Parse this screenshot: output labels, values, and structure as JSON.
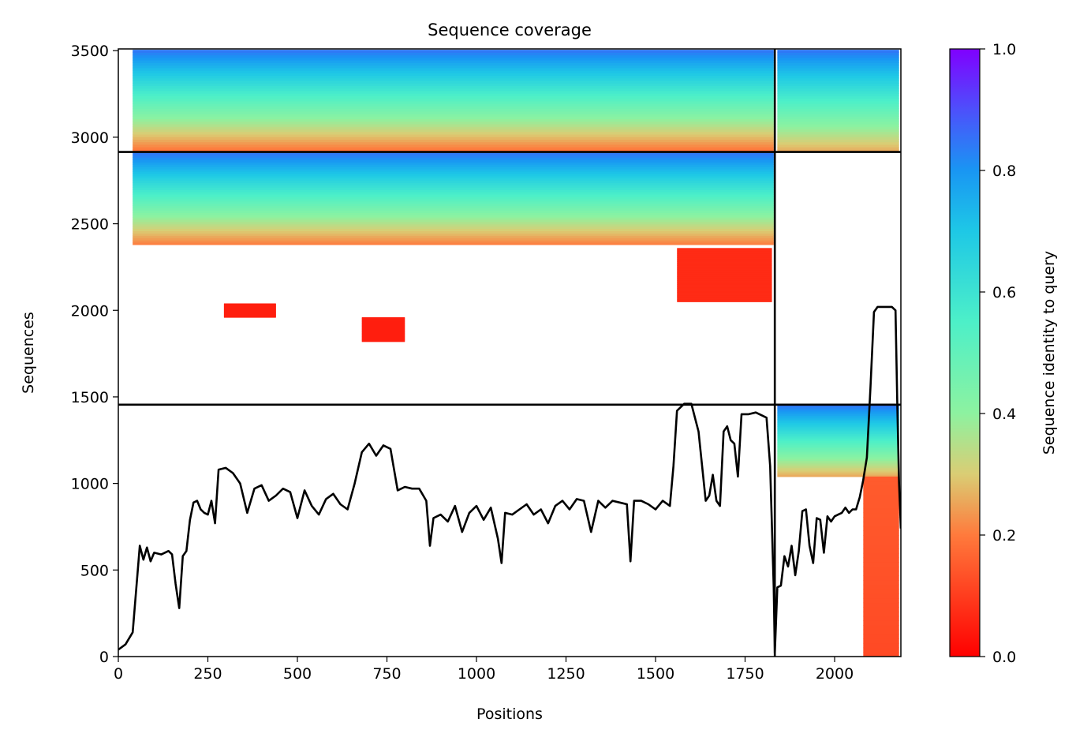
{
  "chart_data": {
    "type": "heatmap",
    "title": "Sequence coverage",
    "xlabel": "Positions",
    "ylabel": "Sequences",
    "xlim": [
      0,
      2185
    ],
    "ylim": [
      0,
      3510
    ],
    "x_ticks": [
      0,
      250,
      500,
      750,
      1000,
      1250,
      1500,
      1750,
      2000
    ],
    "y_ticks": [
      0,
      500,
      1000,
      1500,
      2000,
      2500,
      3000,
      3500
    ],
    "colorbar": {
      "label": "Sequence identity to query",
      "range": [
        0.0,
        1.0
      ],
      "ticks": [
        0.0,
        0.2,
        0.4,
        0.6,
        0.8,
        1.0
      ],
      "colormap": "rainbow_r"
    },
    "chain_boundaries": {
      "x": [
        1833
      ],
      "y": [
        1455,
        2915
      ]
    },
    "blocks": [
      {
        "x": [
          40,
          1830
        ],
        "y": [
          2915,
          3505
        ],
        "identity_top": 0.85,
        "identity_bottom": 0.18
      },
      {
        "x": [
          1840,
          2180
        ],
        "y": [
          2915,
          3505
        ],
        "identity_top": 0.85,
        "identity_bottom": 0.25
      },
      {
        "x": [
          40,
          1830
        ],
        "y": [
          2380,
          2910
        ],
        "identity_top": 0.85,
        "identity_bottom": 0.2
      },
      {
        "x": [
          1560,
          1825
        ],
        "y": [
          2050,
          2360
        ],
        "identity_top": 0.07,
        "identity_bottom": 0.07
      },
      {
        "x": [
          295,
          440
        ],
        "y": [
          1960,
          2040
        ],
        "identity_top": 0.05,
        "identity_bottom": 0.05
      },
      {
        "x": [
          680,
          800
        ],
        "y": [
          1820,
          1960
        ],
        "identity_top": 0.05,
        "identity_bottom": 0.05
      },
      {
        "x": [
          1840,
          2180
        ],
        "y": [
          1040,
          1455
        ],
        "identity_top": 0.85,
        "identity_bottom": 0.25
      },
      {
        "x": [
          2080,
          2180
        ],
        "y": [
          0,
          1040
        ],
        "identity_top": 0.15,
        "identity_bottom": 0.12
      }
    ],
    "coverage_line": {
      "x": [
        0,
        20,
        40,
        60,
        70,
        80,
        90,
        100,
        120,
        140,
        150,
        160,
        170,
        180,
        190,
        200,
        210,
        220,
        230,
        240,
        250,
        260,
        270,
        280,
        300,
        320,
        340,
        360,
        380,
        400,
        420,
        440,
        460,
        480,
        500,
        520,
        540,
        560,
        580,
        600,
        620,
        640,
        660,
        680,
        700,
        720,
        740,
        760,
        780,
        800,
        820,
        840,
        860,
        870,
        880,
        900,
        920,
        940,
        960,
        980,
        1000,
        1020,
        1040,
        1060,
        1070,
        1080,
        1100,
        1120,
        1140,
        1160,
        1180,
        1200,
        1220,
        1240,
        1260,
        1280,
        1300,
        1320,
        1340,
        1360,
        1380,
        1400,
        1420,
        1430,
        1440,
        1460,
        1480,
        1500,
        1520,
        1540,
        1550,
        1560,
        1580,
        1600,
        1620,
        1640,
        1650,
        1660,
        1670,
        1680,
        1690,
        1700,
        1710,
        1720,
        1730,
        1740,
        1760,
        1780,
        1800,
        1810,
        1820,
        1830,
        1833,
        1840,
        1850,
        1860,
        1870,
        1880,
        1890,
        1900,
        1910,
        1920,
        1930,
        1940,
        1950,
        1960,
        1970,
        1980,
        1990,
        2000,
        2010,
        2020,
        2030,
        2040,
        2050,
        2060,
        2070,
        2080,
        2090,
        2100,
        2110,
        2120,
        2140,
        2160,
        2170,
        2175,
        2180,
        2185
      ],
      "y": [
        40,
        70,
        140,
        640,
        560,
        630,
        550,
        600,
        590,
        610,
        590,
        420,
        280,
        580,
        610,
        790,
        890,
        900,
        850,
        830,
        820,
        900,
        770,
        1080,
        1090,
        1060,
        1000,
        830,
        970,
        990,
        900,
        930,
        970,
        950,
        800,
        960,
        870,
        820,
        910,
        940,
        880,
        850,
        1000,
        1180,
        1230,
        1160,
        1220,
        1200,
        960,
        980,
        970,
        970,
        900,
        640,
        800,
        820,
        780,
        870,
        720,
        830,
        870,
        790,
        860,
        680,
        540,
        830,
        820,
        850,
        880,
        820,
        850,
        770,
        870,
        900,
        850,
        910,
        900,
        720,
        900,
        860,
        900,
        890,
        880,
        550,
        900,
        900,
        880,
        850,
        900,
        870,
        1100,
        1420,
        1460,
        1460,
        1300,
        900,
        930,
        1050,
        900,
        870,
        1300,
        1330,
        1250,
        1230,
        1040,
        1400,
        1400,
        1410,
        1390,
        1380,
        1100,
        400,
        20,
        400,
        410,
        580,
        520,
        640,
        470,
        610,
        840,
        850,
        640,
        540,
        800,
        790,
        600,
        810,
        780,
        810,
        820,
        830,
        860,
        830,
        850,
        850,
        920,
        1020,
        1150,
        1550,
        1990,
        2020,
        2020,
        2020,
        2000,
        1450,
        1000,
        740
      ]
    }
  }
}
